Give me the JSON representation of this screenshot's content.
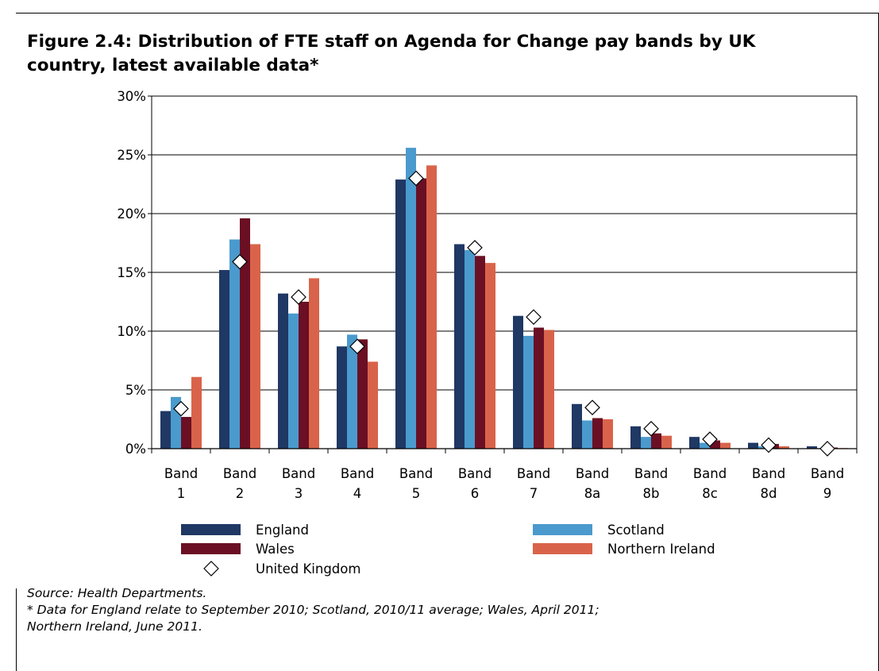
{
  "chart_data": {
    "type": "bar",
    "title": "Figure 2.4: Distribution of FTE staff on Agenda for Change pay bands by UK country, latest available data*",
    "categories": [
      [
        "Band",
        "1"
      ],
      [
        "Band",
        "2"
      ],
      [
        "Band",
        "3"
      ],
      [
        "Band",
        "4"
      ],
      [
        "Band",
        "5"
      ],
      [
        "Band",
        "6"
      ],
      [
        "Band",
        "7"
      ],
      [
        "Band",
        "8a"
      ],
      [
        "Band",
        "8b"
      ],
      [
        "Band",
        "8c"
      ],
      [
        "Band",
        "8d"
      ],
      [
        "Band",
        "9"
      ]
    ],
    "yticks": [
      "0%",
      "5%",
      "10%",
      "15%",
      "20%",
      "25%",
      "30%"
    ],
    "ylim": [
      0,
      30
    ],
    "grid": true,
    "series": [
      {
        "name": "England",
        "color": "#1f3864",
        "values": [
          3.2,
          15.2,
          13.2,
          8.7,
          22.9,
          17.4,
          11.3,
          3.8,
          1.9,
          1.0,
          0.5,
          0.2
        ]
      },
      {
        "name": "Scotland",
        "color": "#4a9acd",
        "values": [
          4.4,
          17.8,
          11.5,
          9.7,
          25.6,
          16.9,
          9.6,
          2.4,
          1.0,
          0.5,
          0.2,
          0.05
        ]
      },
      {
        "name": "Wales",
        "color": "#6b0f24",
        "values": [
          2.7,
          19.6,
          12.5,
          9.3,
          23.0,
          16.4,
          10.3,
          2.6,
          1.3,
          0.7,
          0.4,
          0.1
        ]
      },
      {
        "name": "Northern Ireland",
        "color": "#d9634a",
        "values": [
          6.1,
          17.4,
          14.5,
          7.4,
          24.1,
          15.8,
          10.1,
          2.5,
          1.1,
          0.5,
          0.2,
          0.05
        ]
      }
    ],
    "markers": {
      "name": "United Kingdom",
      "values": [
        3.4,
        15.9,
        12.9,
        8.7,
        23.0,
        17.1,
        11.2,
        3.5,
        1.7,
        0.8,
        0.3,
        0.0
      ]
    },
    "legend_position": "bottom"
  },
  "notes": {
    "source": "Source: Health Departments.",
    "footnote_line1": "* Data for England relate to September 2010; Scotland, 2010/11 average; Wales, April 2011;",
    "footnote_line2": "Northern Ireland, June 2011."
  }
}
